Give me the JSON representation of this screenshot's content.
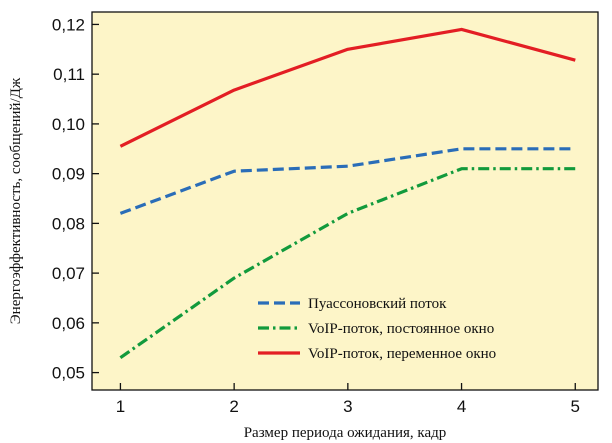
{
  "chart_data": {
    "type": "line",
    "title": "",
    "xlabel": "Размер периода ожидания, кадр",
    "ylabel": "Энергоэффективность, сообщений/Дж",
    "x": [
      1,
      2,
      3,
      4,
      5
    ],
    "xlim": [
      0.75,
      5.2
    ],
    "ylim": [
      0.0465,
      0.1225
    ],
    "xticks": [
      1,
      2,
      3,
      4,
      5
    ],
    "xtick_labels": [
      "1",
      "2",
      "3",
      "4",
      "5"
    ],
    "yticks": [
      0.05,
      0.06,
      0.07,
      0.08,
      0.09,
      0.1,
      0.11,
      0.12
    ],
    "ytick_labels": [
      "0,05",
      "0,06",
      "0,07",
      "0,08",
      "0,09",
      "0,10",
      "0,11",
      "0,12"
    ],
    "grid": false,
    "legend_position": "lower-right",
    "plot_background": "#fdf5c8",
    "series": [
      {
        "name": "Пуассоновский поток",
        "values": [
          0.082,
          0.0905,
          0.0915,
          0.095,
          0.095
        ],
        "color": "#2a6db8",
        "dash": "dashed"
      },
      {
        "name": "VoIP-поток, постоянное окно",
        "values": [
          0.053,
          0.069,
          0.082,
          0.091,
          0.091
        ],
        "color": "#129a3c",
        "dash": "dashdot"
      },
      {
        "name": "VoIP-поток, переменное окно",
        "values": [
          0.0955,
          0.1068,
          0.115,
          0.119,
          0.1128
        ],
        "color": "#e31e24",
        "dash": "solid"
      }
    ]
  }
}
